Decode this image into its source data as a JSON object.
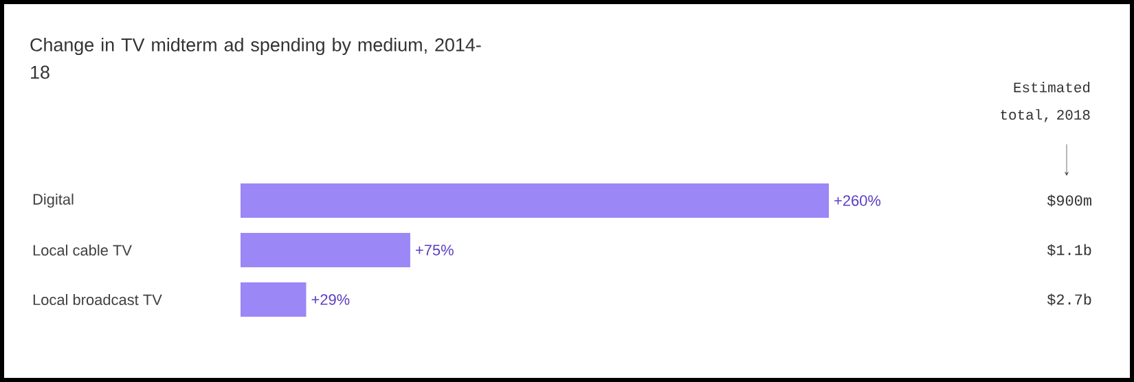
{
  "chart_data": {
    "type": "bar",
    "orientation": "horizontal",
    "title": "Change in TV midterm ad spending by medium, 2014-18",
    "categories": [
      "Digital",
      "Local cable TV",
      "Local broadcast TV"
    ],
    "values": [
      260,
      75,
      29
    ],
    "value_labels": [
      "+260%",
      "+75%",
      "+29%"
    ],
    "color": "#9b87f5",
    "annotations": [
      "Estimated total, 2018",
      "$900m",
      "$1.1b",
      "$2.7b"
    ]
  }
}
